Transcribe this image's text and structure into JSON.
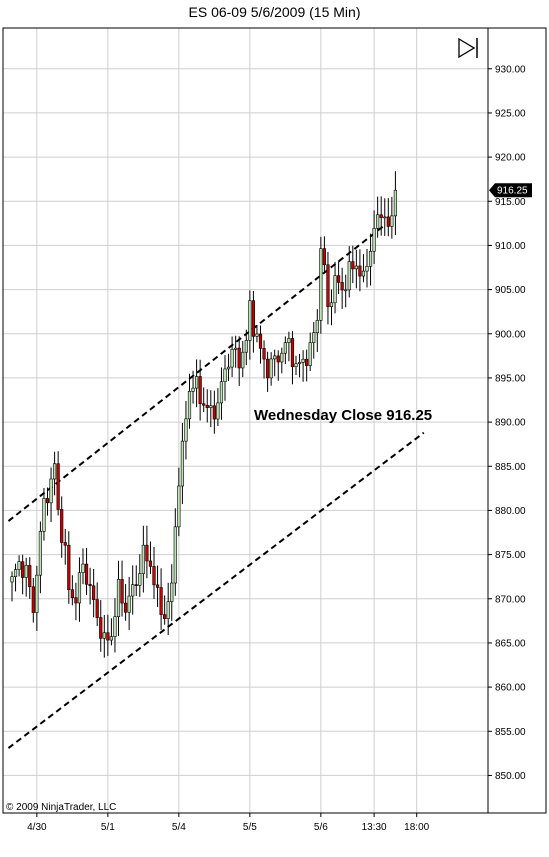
{
  "chart_data": {
    "type": "candlestick",
    "title": "ES 06-09  5/6/2009 (15 Min)",
    "copyright": "© 2009 NinjaTrader, LLC",
    "annotation": "Wednesday Close 916.25",
    "last_price_label": "916.25",
    "last_price": 916.25,
    "ylim": [
      845,
      935
    ],
    "y_ticks": [
      "930.00",
      "925.00",
      "920.00",
      "915.00",
      "910.00",
      "905.00",
      "900.00",
      "895.00",
      "890.00",
      "885.00",
      "880.00",
      "875.00",
      "870.00",
      "865.00",
      "860.00",
      "855.00",
      "850.00"
    ],
    "x_ticks": [
      {
        "label": "4/30",
        "pos": 7
      },
      {
        "label": "5/1",
        "pos": 27
      },
      {
        "label": "5/4",
        "pos": 47
      },
      {
        "label": "5/5",
        "pos": 67
      },
      {
        "label": "5/6",
        "pos": 87
      },
      {
        "label": "13:30",
        "pos": 102
      },
      {
        "label": "18:00",
        "pos": 114
      }
    ],
    "grid": true,
    "bar_count": 109,
    "colors": {
      "up": "#b9e3b0",
      "down": "#cc0000",
      "wick": "#000000",
      "channel": "#000000",
      "grid": "#cfcfcf",
      "last_price_bg": "#000000"
    },
    "channel_lines": [
      {
        "name": "upper",
        "start": [
          -1,
          878.8
        ],
        "end": [
          105,
          912.3
        ]
      },
      {
        "name": "lower",
        "start": [
          -1,
          853.1
        ],
        "end": [
          116,
          888.8
        ]
      }
    ]
  },
  "icons": {
    "scroll_end": "skip-to-end-icon"
  }
}
